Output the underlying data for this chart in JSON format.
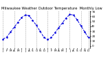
{
  "title": "Milwaukee Weather Outdoor Temperature  Monthly Low",
  "values": [
    14,
    18,
    28,
    38,
    48,
    58,
    63,
    62,
    52,
    42,
    30,
    18,
    13,
    17,
    27,
    37,
    47,
    57,
    64,
    63,
    53,
    41,
    29,
    17
  ],
  "line_color": "#0000dd",
  "linestyle": "--",
  "ylim": [
    -5,
    72
  ],
  "yticks": [
    0,
    10,
    20,
    30,
    40,
    50,
    60,
    70
  ],
  "grid_color": "#999999",
  "grid_positions": [
    0,
    3,
    6,
    9,
    12,
    15,
    18,
    21,
    23
  ],
  "bg_color": "#ffffff",
  "title_fontsize": 3.8,
  "tick_fontsize": 3.0,
  "linewidth": 0.7,
  "markersize": 1.8,
  "month_abbr": [
    "J",
    "F",
    "M",
    "A",
    "M",
    "J",
    "J",
    "A",
    "S",
    "O",
    "N",
    "D",
    "J",
    "F",
    "M",
    "A",
    "M",
    "J",
    "J",
    "A",
    "S",
    "O",
    "N",
    "D"
  ]
}
